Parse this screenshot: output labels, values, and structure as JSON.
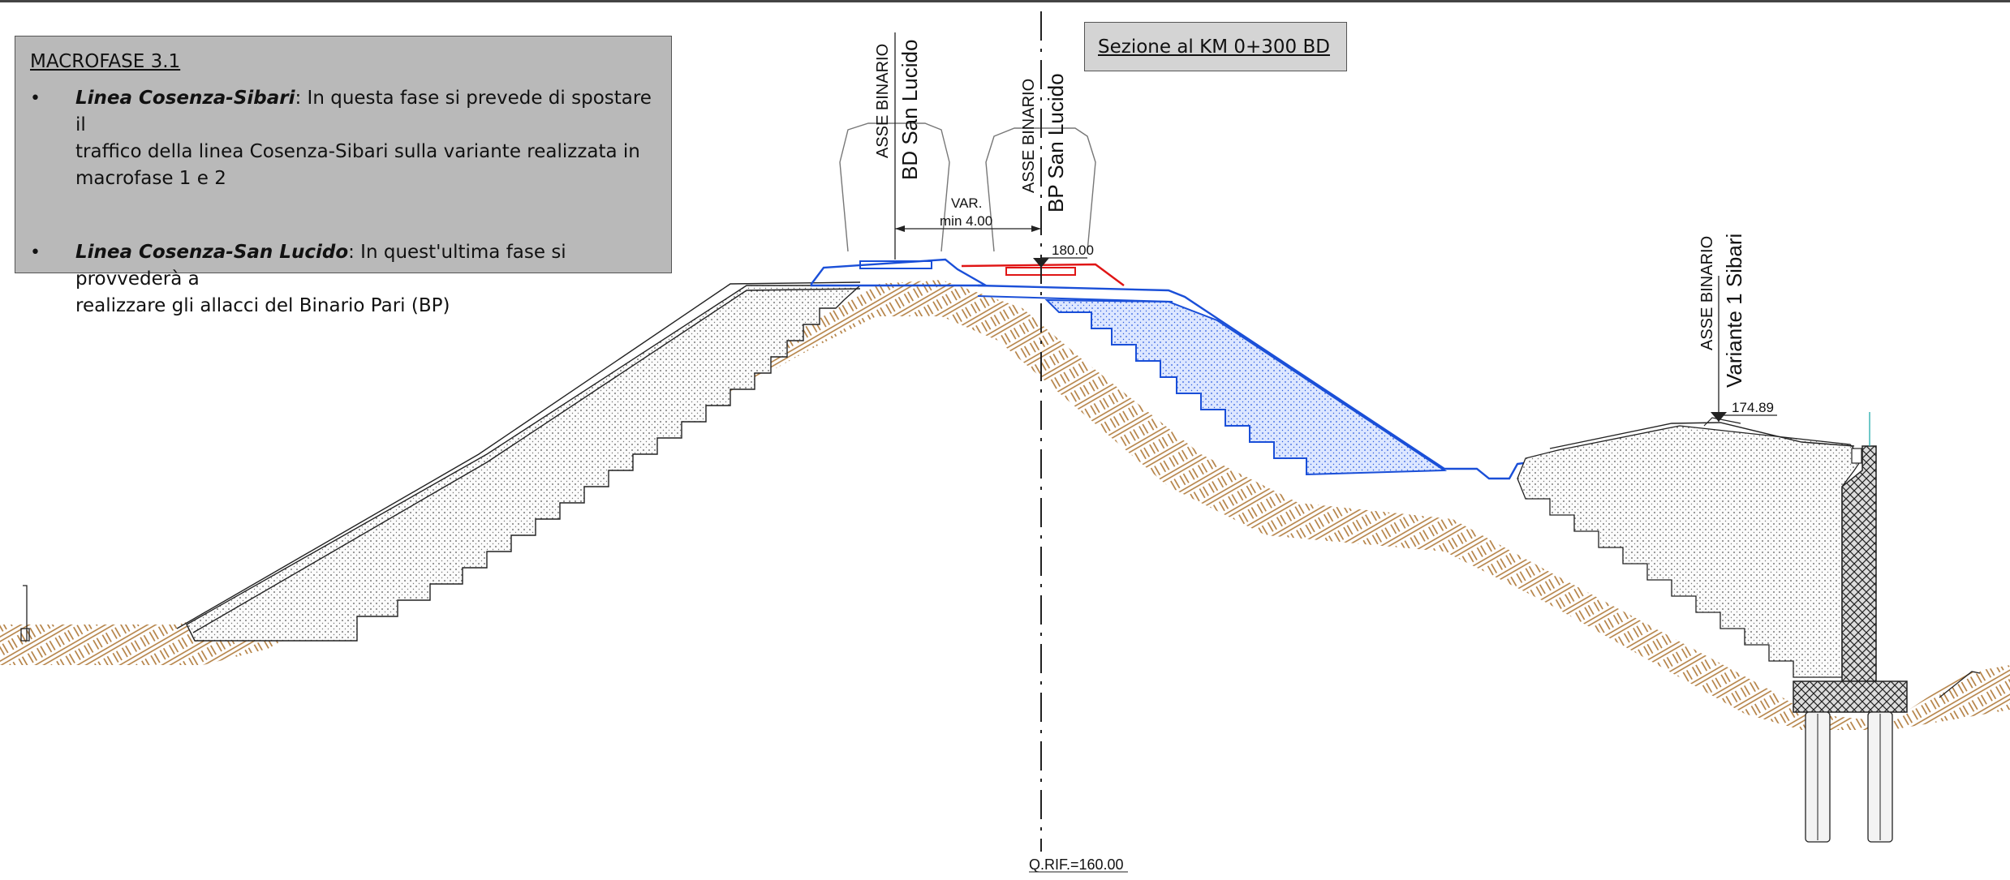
{
  "info_box": {
    "title": "MACROFASE 3.1",
    "items": [
      {
        "bullet": "•",
        "bold": "Linea Cosenza-Sibari",
        "text_line1": ": In questa fase si prevede di spostare il",
        "text_line2": "traffico della linea Cosenza-Sibari sulla variante realizzata in",
        "text_line3": "macrofase 1 e 2"
      },
      {
        "bullet": "•",
        "bold": "Linea Cosenza-San Lucido",
        "text_line1": ": In quest'ultima fase si provvederà a",
        "text_line2": "realizzare gli allacci del Binario Pari (BP)"
      }
    ]
  },
  "section_label": "Sezione al KM 0+300 BD",
  "tracks": [
    {
      "line1": "ASSE BINARIO",
      "line2": "BD San Lucido"
    },
    {
      "line1": "ASSE BINARIO",
      "line2": "BP San Lucido"
    },
    {
      "line1": "ASSE BINARIO",
      "line2": "Variante 1 Sibari"
    }
  ],
  "dimension": {
    "line1": "VAR.",
    "line2": "min 4.00"
  },
  "elevations": {
    "bp_rail": "180.00",
    "sibari_rail": "174.89"
  },
  "reference_level": "Q.RIF.=160.00",
  "colors": {
    "soil": "#b07a3a",
    "new_works": "#1a4fd8",
    "demolition": "#e01515",
    "fill_blue": "#c9d8ff"
  }
}
